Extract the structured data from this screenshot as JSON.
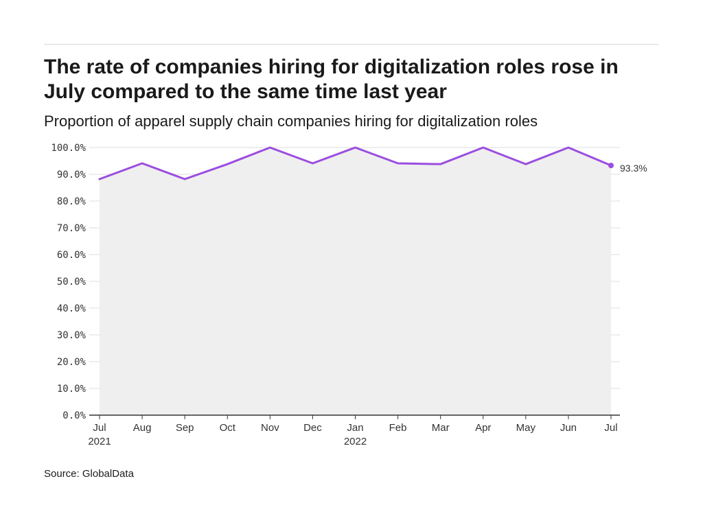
{
  "header": {
    "title": "The rate of companies hiring for digitalization roles rose in July compared to the same time last year",
    "subtitle": "Proportion of apparel supply chain companies hiring for digitalization roles"
  },
  "footer": {
    "source": "Source: GlobalData"
  },
  "chart_data": {
    "type": "area",
    "title": "The rate of companies hiring for digitalization roles rose in July compared to the same time last year",
    "subtitle": "Proportion of apparel supply chain companies hiring for digitalization roles",
    "xlabel": "",
    "ylabel": "",
    "categories": [
      "Jul",
      "Aug",
      "Sep",
      "Oct",
      "Nov",
      "Dec",
      "Jan",
      "Feb",
      "Mar",
      "Apr",
      "May",
      "Jun",
      "Jul"
    ],
    "year_labels": [
      "2021",
      "",
      "",
      "",
      "",
      "",
      "2022",
      "",
      "",
      "",
      "",
      "",
      ""
    ],
    "y_ticks": [
      "0.0%",
      "10.0%",
      "20.0%",
      "30.0%",
      "40.0%",
      "50.0%",
      "60.0%",
      "70.0%",
      "80.0%",
      "90.0%",
      "100.0%"
    ],
    "ylim": [
      0,
      100
    ],
    "series": [
      {
        "values": [
          88.2,
          94.1,
          88.2,
          93.8,
          100.0,
          94.1,
          100.0,
          94.1,
          93.8,
          100.0,
          93.8,
          100.0,
          93.3
        ]
      }
    ],
    "end_label": "93.3%",
    "grid": true,
    "legend": "none",
    "colors": {
      "line": "#9b4de0",
      "area": "#efefef",
      "grid": "#dddddd",
      "axis": "#333333"
    }
  }
}
